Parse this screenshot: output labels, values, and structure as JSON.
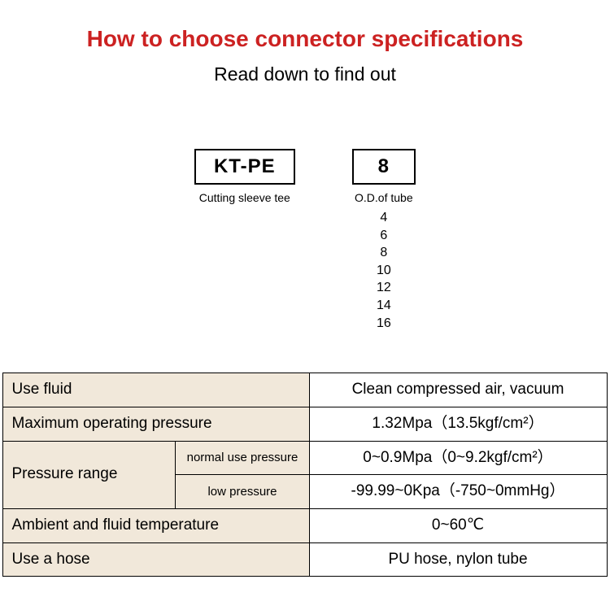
{
  "title": "How to choose connector specifications",
  "title_color": "#cc2222",
  "subtitle": "Read down to find out",
  "code_boxes": [
    {
      "value": "KT-PE",
      "label": "Cutting sleeve tee"
    },
    {
      "value": "8",
      "label": "O.D.of tube"
    }
  ],
  "tube_sizes": [
    "4",
    "6",
    "8",
    "10",
    "12",
    "14",
    "16"
  ],
  "table": {
    "label_bg": "#f1e8da",
    "border_color": "#000000",
    "rows": {
      "use_fluid": {
        "label": "Use fluid",
        "value": "Clean compressed air, vacuum"
      },
      "max_pressure": {
        "label": "Maximum operating pressure",
        "value": "1.32Mpa（13.5kgf/cm²）"
      },
      "pressure_range": {
        "label": "Pressure range",
        "normal": {
          "sublabel": "normal use pressure",
          "value": "0~0.9Mpa（0~9.2kgf/cm²）"
        },
        "low": {
          "sublabel": "low pressure",
          "value": "-99.99~0Kpa（-750~0mmHg）"
        }
      },
      "temperature": {
        "label": "Ambient and fluid temperature",
        "value": "0~60℃"
      },
      "hose": {
        "label": "Use a hose",
        "value": "PU hose, nylon tube"
      }
    }
  }
}
